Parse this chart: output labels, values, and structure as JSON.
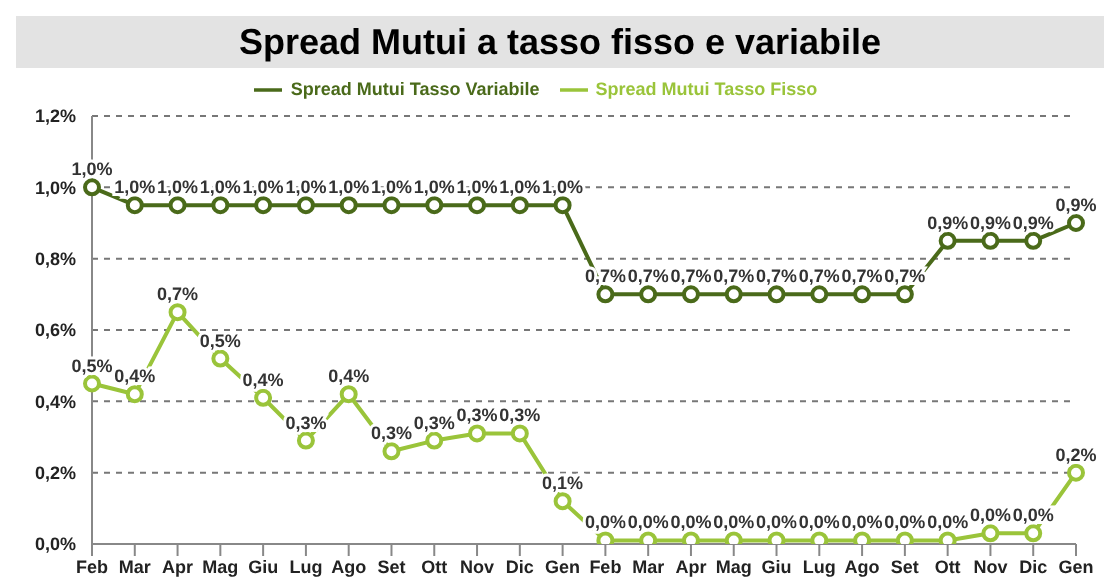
{
  "chart_data": {
    "type": "line",
    "title": "Spread Mutui a tasso fisso e variabile",
    "categories": [
      "Feb",
      "Mar",
      "Apr",
      "Mag",
      "Giu",
      "Lug",
      "Ago",
      "Set",
      "Ott",
      "Nov",
      "Dic",
      "Gen",
      "Feb",
      "Mar",
      "Apr",
      "Mag",
      "Giu",
      "Lug",
      "Ago",
      "Set",
      "Ott",
      "Nov",
      "Dic",
      "Gen"
    ],
    "series": [
      {
        "name": "Spread Mutui Tasso Variabile",
        "color": "#4a6a1a",
        "values": [
          1.0,
          0.95,
          0.95,
          0.95,
          0.95,
          0.95,
          0.95,
          0.95,
          0.95,
          0.95,
          0.95,
          0.95,
          0.7,
          0.7,
          0.7,
          0.7,
          0.7,
          0.7,
          0.7,
          0.7,
          0.85,
          0.85,
          0.85,
          0.9
        ],
        "value_labels": [
          "1,0%",
          "1,0%",
          "1,0%",
          "1,0%",
          "1,0%",
          "1,0%",
          "1,0%",
          "1,0%",
          "1,0%",
          "1,0%",
          "1,0%",
          "1,0%",
          "0,7%",
          "0,7%",
          "0,7%",
          "0,7%",
          "0,7%",
          "0,7%",
          "0,7%",
          "0,7%",
          "0,9%",
          "0,9%",
          "0,9%",
          "0,9%"
        ]
      },
      {
        "name": "Spread Mutui Tasso Fisso",
        "color": "#9ac43a",
        "values": [
          0.45,
          0.42,
          0.65,
          0.52,
          0.41,
          0.29,
          0.42,
          0.26,
          0.29,
          0.31,
          0.31,
          0.12,
          0.01,
          0.01,
          0.01,
          0.01,
          0.01,
          0.01,
          0.01,
          0.01,
          0.01,
          0.03,
          0.03,
          0.2
        ],
        "value_labels": [
          "0,5%",
          "0,4%",
          "0,7%",
          "0,5%",
          "0,4%",
          "0,3%",
          "0,4%",
          "0,3%",
          "0,3%",
          "0,3%",
          "0,3%",
          "0,1%",
          "0,0%",
          "0,0%",
          "0,0%",
          "0,0%",
          "0,0%",
          "0,0%",
          "0,0%",
          "0,0%",
          "0,0%",
          "0,0%",
          "0,0%",
          "0,2%"
        ]
      }
    ],
    "ylim": [
      0,
      1.2
    ],
    "yticks": [
      {
        "value": 0,
        "label": "0,0%"
      },
      {
        "value": 0.2,
        "label": "0,2%"
      },
      {
        "value": 0.4,
        "label": "0,4%"
      },
      {
        "value": 0.6,
        "label": "0,6%"
      },
      {
        "value": 0.8,
        "label": "0,8%"
      },
      {
        "value": 1.0,
        "label": "1,0%"
      },
      {
        "value": 1.2,
        "label": "1,2%"
      }
    ],
    "grid": "y",
    "legend": "top",
    "marker": "circle",
    "line_style": "solid"
  }
}
